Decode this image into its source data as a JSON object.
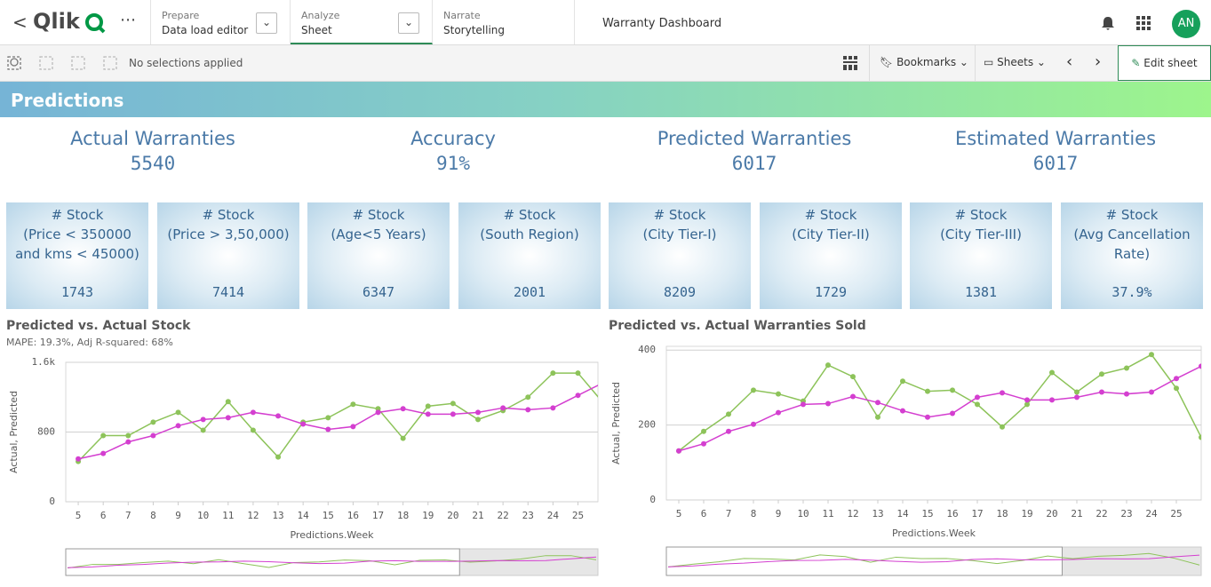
{
  "header": {
    "logo": "Qlik",
    "tabs": [
      {
        "label": "Prepare",
        "item": "Data load editor"
      },
      {
        "label": "Analyze",
        "item": "Sheet"
      },
      {
        "label": "Narrate",
        "item": "Storytelling"
      }
    ],
    "app_title": "Warranty Dashboard",
    "avatar": "AN"
  },
  "toolbar": {
    "selections": "No selections applied",
    "bookmarks": "Bookmarks",
    "sheets": "Sheets",
    "edit": "Edit sheet"
  },
  "sheet_title": "Predictions",
  "kpis": [
    {
      "label": "Actual Warranties",
      "value": "5540"
    },
    {
      "label": "Accuracy",
      "value": "91%"
    },
    {
      "label": "Predicted Warranties",
      "value": "6017"
    },
    {
      "label": "Estimated Warranties",
      "value": "6017"
    }
  ],
  "tiles": [
    {
      "title": "# Stock",
      "detail": "(Price < 350000 and kms < 45000)",
      "value": "1743"
    },
    {
      "title": "# Stock",
      "detail": "(Price > 3,50,000)",
      "value": "7414"
    },
    {
      "title": "# Stock",
      "detail": "(Age<5 Years)",
      "value": "6347"
    },
    {
      "title": "# Stock",
      "detail": "(South Region)",
      "value": "2001"
    },
    {
      "title": "# Stock",
      "detail": "(City Tier-I)",
      "value": "8209"
    },
    {
      "title": "# Stock",
      "detail": "(City Tier-II)",
      "value": "1729"
    },
    {
      "title": "# Stock",
      "detail": "(City Tier-III)",
      "value": "1381"
    },
    {
      "title": "# Stock",
      "detail": "(Avg Cancellation Rate)",
      "value": "37.9%"
    }
  ],
  "chart_data": [
    {
      "type": "line",
      "title": "Predicted vs. Actual Stock",
      "subtitle": "MAPE: 19.3%, Adj R-squared: 68%",
      "x_label": "Predictions.Week",
      "y_label": "Actual, Predicted",
      "x": [
        5,
        6,
        7,
        8,
        9,
        10,
        11,
        12,
        13,
        14,
        15,
        16,
        17,
        18,
        19,
        20,
        21,
        22,
        23,
        24,
        25,
        26
      ],
      "xlim": [
        4.5,
        25.8
      ],
      "xticks": [
        5,
        6,
        7,
        8,
        9,
        10,
        11,
        12,
        13,
        14,
        15,
        16,
        17,
        18,
        19,
        20,
        21,
        22,
        23,
        24,
        25
      ],
      "ylim": [
        0,
        1600
      ],
      "yticks": [
        0,
        800,
        {
          "value": 1600,
          "label": "1.6k"
        }
      ],
      "grid": true,
      "series": [
        {
          "color": "#8dc35a",
          "values": [
            462,
            759,
            759,
            913,
            1026,
            821,
            1149,
            821,
            513,
            913,
            964,
            1118,
            1067,
            728,
            1097,
            1128,
            944,
            1046,
            1200,
            1477,
            1477,
            1138
          ]
        },
        {
          "color": "#d43fd0",
          "values": [
            492,
            554,
            687,
            759,
            872,
            944,
            964,
            1026,
            985,
            892,
            831,
            862,
            1026,
            1067,
            1005,
            1005,
            1026,
            1077,
            1056,
            1077,
            1221,
            1364
          ]
        }
      ]
    },
    {
      "type": "line",
      "title": "Predicted vs. Actual Warranties Sold",
      "x_label": "Predictions.Week",
      "y_label": "Actual, Predicted",
      "x": [
        5,
        6,
        7,
        8,
        9,
        10,
        11,
        12,
        13,
        14,
        15,
        16,
        17,
        18,
        19,
        20,
        21,
        22,
        23,
        24,
        25,
        26
      ],
      "xlim": [
        4.5,
        26
      ],
      "xticks": [
        5,
        6,
        7,
        8,
        9,
        10,
        11,
        12,
        13,
        14,
        15,
        16,
        17,
        18,
        19,
        20,
        21,
        22,
        23,
        24,
        25
      ],
      "ylim": [
        0,
        410
      ],
      "yticks": [
        0,
        200,
        400
      ],
      "grid": true,
      "series": [
        {
          "color": "#8dc35a",
          "values": [
            131,
            183,
            229,
            293,
            283,
            264,
            360,
            329,
            221,
            317,
            290,
            293,
            255,
            195,
            255,
            340,
            288,
            336,
            352,
            388,
            298,
            167
          ]
        },
        {
          "color": "#d43fd0",
          "values": [
            131,
            150,
            183,
            202,
            233,
            255,
            257,
            276,
            260,
            238,
            221,
            231,
            274,
            286,
            267,
            267,
            274,
            288,
            283,
            288,
            324,
            357
          ]
        }
      ]
    }
  ]
}
